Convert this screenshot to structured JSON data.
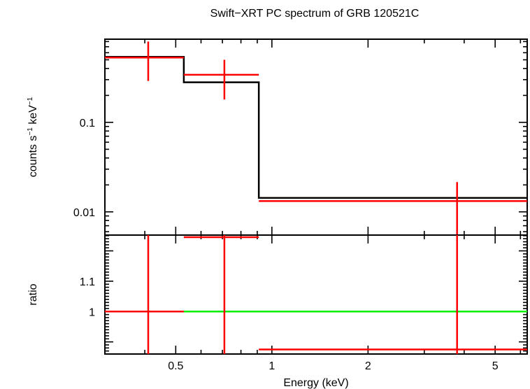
{
  "chart_data": {
    "title": "Swift−XRT PC spectrum of GRB 120521C",
    "xlabel": "Energy (keV)",
    "x_scale": "log",
    "xlim": [
      0.3,
      6.3
    ],
    "x_ticks": [
      {
        "value": 0.5,
        "label": "0.5"
      },
      {
        "value": 1,
        "label": "1"
      },
      {
        "value": 2,
        "label": "2"
      },
      {
        "value": 5,
        "label": "5"
      }
    ],
    "panels": [
      {
        "type": "step+errorbar",
        "ylabel_parts": [
          "counts s",
          "−1",
          " keV",
          "−1"
        ],
        "y_scale": "log",
        "ylim": [
          0.0055,
          0.85
        ],
        "y_ticks": [
          {
            "value": 0.01,
            "label": "0.01"
          },
          {
            "value": 0.1,
            "label": "0.1"
          }
        ],
        "data": [
          {
            "x": 0.41,
            "xlo": 0.3,
            "xhi": 0.53,
            "y": 0.53,
            "ylo": 0.29,
            "yhi": 0.8
          },
          {
            "x": 0.71,
            "xlo": 0.53,
            "xhi": 0.91,
            "y": 0.34,
            "ylo": 0.18,
            "yhi": 0.5
          },
          {
            "x": 3.8,
            "xlo": 0.91,
            "xhi": 6.3,
            "y": 0.0132,
            "ylo": 0.0,
            "yhi": 0.0215
          }
        ],
        "model": [
          {
            "xlo": 0.3,
            "xhi": 0.53,
            "y": 0.54
          },
          {
            "xlo": 0.53,
            "xhi": 0.91,
            "y": 0.28
          },
          {
            "xlo": 0.91,
            "xhi": 6.3,
            "y": 0.0143
          }
        ],
        "colors": {
          "data": "#ff0000",
          "model": "#000000"
        }
      },
      {
        "type": "errorbar",
        "ylabel": "ratio",
        "y_scale": "linear",
        "ylim": [
          0.86,
          1.252
        ],
        "y_ticks": [
          {
            "value": 1,
            "label": "1"
          },
          {
            "value": 1.1,
            "label": "1.1"
          }
        ],
        "reference_line": 1,
        "data": [
          {
            "x": 0.41,
            "xlo": 0.3,
            "xhi": 0.53,
            "y": 1.0,
            "ylo": 0.86,
            "yhi": 1.252
          },
          {
            "x": 0.71,
            "xlo": 0.53,
            "xhi": 0.91,
            "y": 1.245,
            "ylo": 0.86,
            "yhi": 1.252
          },
          {
            "x": 3.8,
            "xlo": 0.91,
            "xhi": 6.3,
            "y": 0.875,
            "ylo": 0.86,
            "yhi": 1.252
          }
        ],
        "colors": {
          "data": "#ff0000",
          "reference": "#00ee00"
        }
      }
    ]
  }
}
